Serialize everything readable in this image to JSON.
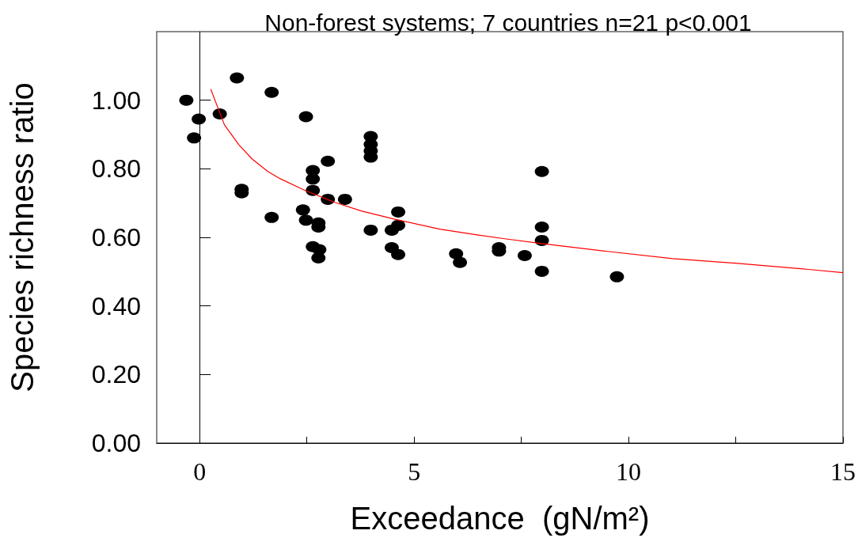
{
  "chart_data": {
    "type": "scatter",
    "title": "Non-forest systems; 7 countries n=21 p<0.001",
    "xlabel": "Exceedance  (gN/m²)",
    "ylabel": "Species richness ratio",
    "xlim": [
      -1,
      15
    ],
    "xticks": [
      0,
      {
        "value": 2.5,
        "label": null
      },
      5,
      {
        "value": 7.5,
        "label": null
      },
      10,
      {
        "value": 12.5,
        "label": null
      },
      15
    ],
    "ylim": [
      0,
      1.2
    ],
    "yticks": [
      {
        "value": 0,
        "label": "0.00"
      },
      {
        "value": 0.2,
        "label": "0.20"
      },
      {
        "value": 0.4,
        "label": "0.40"
      },
      {
        "value": 0.6,
        "label": "0.60"
      },
      {
        "value": 0.8,
        "label": "0.80"
      },
      {
        "value": 1.0,
        "label": "1.00"
      }
    ],
    "grid": false,
    "marker": "circle",
    "ref_lines": [
      {
        "axis": "x",
        "value": 0,
        "color": "#000000"
      }
    ],
    "series": [
      {
        "color": "#000000",
        "x": [
          -0.31,
          -0.13,
          -0.02,
          0.47,
          0.87,
          0.98,
          0.98,
          1.68,
          1.68,
          2.48,
          2.41,
          2.48,
          2.64,
          2.64,
          2.64,
          2.99,
          2.77,
          2.77,
          2.64,
          2.79,
          2.77,
          2.99,
          3.39,
          3.99,
          3.99,
          3.99,
          3.99,
          3.99,
          4.63,
          4.63,
          4.48,
          4.48,
          4.63,
          5.98,
          6.07,
          6.98,
          6.98,
          7.58,
          7.98,
          7.98,
          7.98,
          7.98,
          9.73
        ],
        "values": [
          1.0,
          0.89,
          0.945,
          0.96,
          1.065,
          0.74,
          0.73,
          1.023,
          0.658,
          0.952,
          0.68,
          0.65,
          0.795,
          0.77,
          0.737,
          0.822,
          0.642,
          0.63,
          0.573,
          0.564,
          0.54,
          0.711,
          0.711,
          0.894,
          0.871,
          0.852,
          0.834,
          0.621,
          0.674,
          0.635,
          0.621,
          0.57,
          0.55,
          0.552,
          0.527,
          0.57,
          0.56,
          0.547,
          0.792,
          0.63,
          0.591,
          0.501,
          0.485
        ]
      },
      {
        "type": "line",
        "color": "#ff0000",
        "marker": "none",
        "line_style": "solid",
        "x": [
          0.26,
          0.58,
          0.91,
          1.22,
          1.59,
          1.88,
          2.42,
          3.15,
          3.77,
          4.61,
          5.6,
          6.47,
          7.11,
          7.98,
          9.51,
          11.03,
          12.54,
          14.07,
          15.0
        ],
        "values": [
          1.032,
          0.928,
          0.871,
          0.829,
          0.792,
          0.771,
          0.739,
          0.702,
          0.677,
          0.651,
          0.624,
          0.607,
          0.596,
          0.582,
          0.559,
          0.538,
          0.524,
          0.508,
          0.497
        ]
      }
    ]
  }
}
